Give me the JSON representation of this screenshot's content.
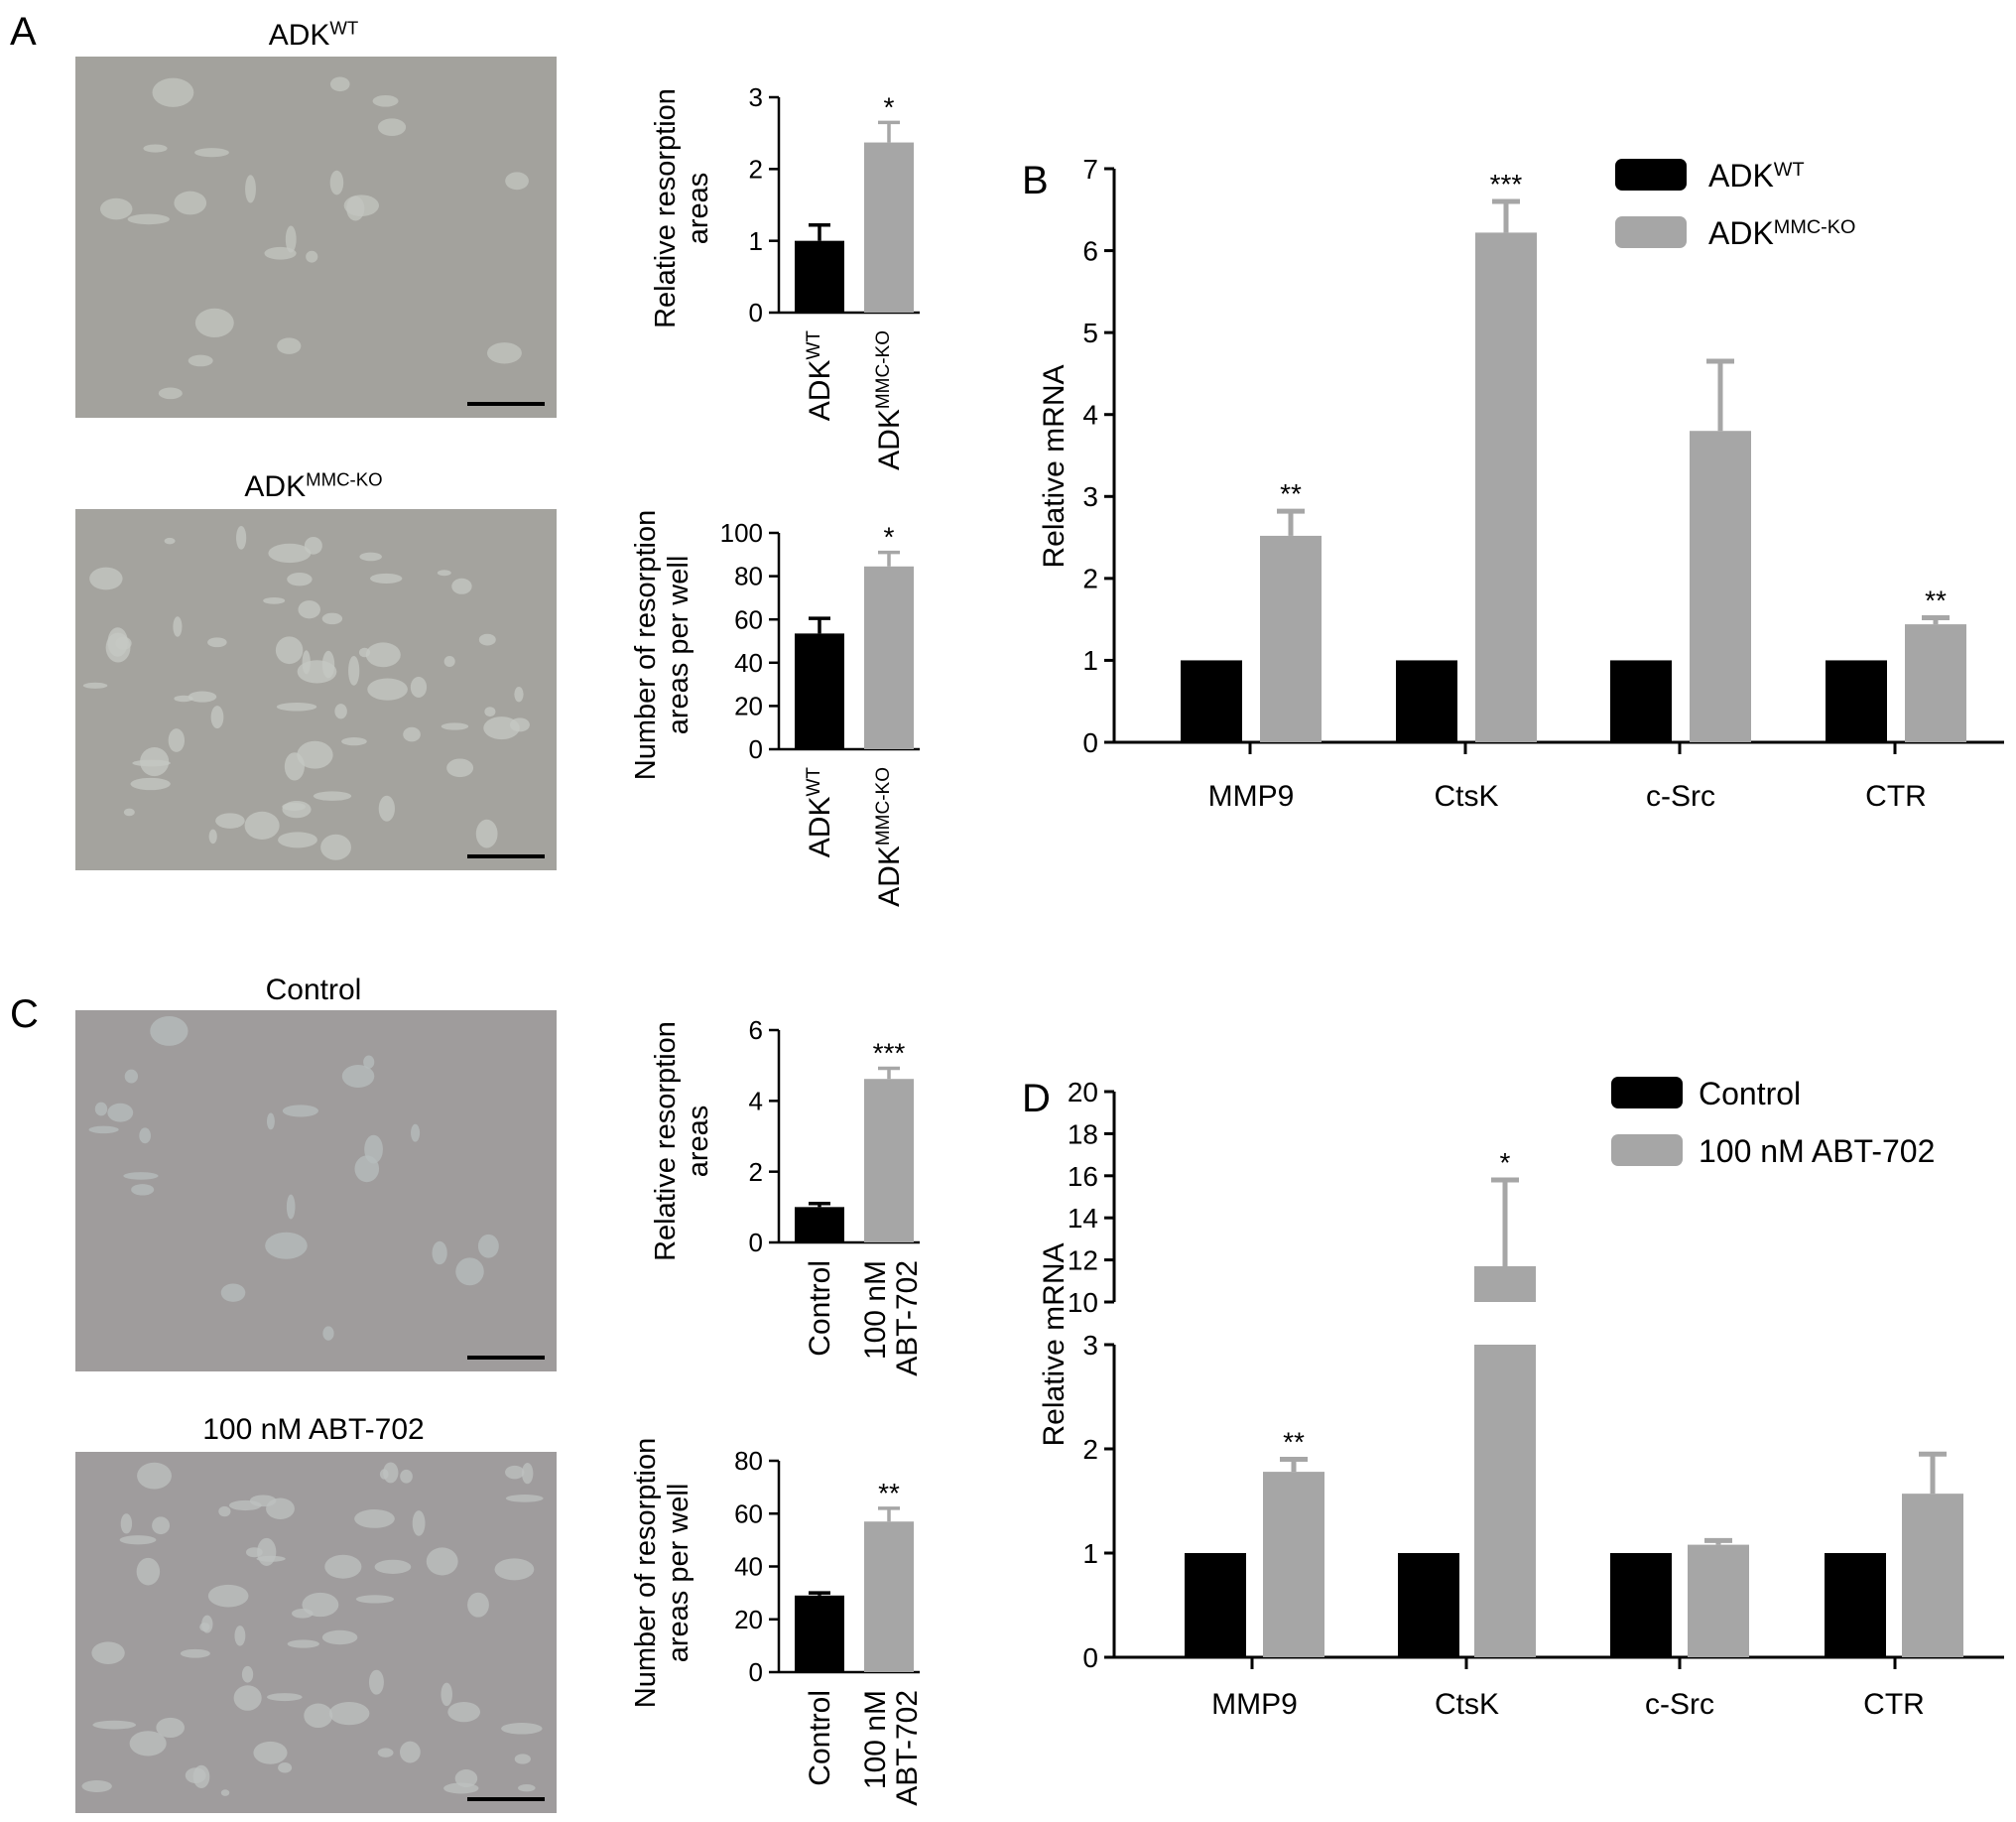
{
  "panel_letters": {
    "A": "A",
    "B": "B",
    "C": "C",
    "D": "D"
  },
  "micrographs": [
    {
      "id": "adk-wt",
      "label_main": "ADK",
      "label_sup": "WT",
      "tone": "#a3a29d",
      "specks": "#c3c5c0"
    },
    {
      "id": "adk-mmc-ko",
      "label_main": "ADK",
      "label_sup": "MMC-KO",
      "tone": "#a4a39e",
      "specks": "#c6c8c3"
    },
    {
      "id": "control",
      "label_main": "Control",
      "label_sup": "",
      "tone": "#9f9c9c",
      "specks": "#b7bdbd"
    },
    {
      "id": "abt-702",
      "label_main": "100 nM ABT-702",
      "label_sup": "",
      "tone": "#9f9c9d",
      "specks": "#bec1c0"
    }
  ],
  "colors": {
    "group1": "#000000",
    "group2": "#a6a6a6"
  },
  "chart_data": [
    {
      "id": "A-top",
      "panel": "A",
      "type": "bar",
      "categories": [
        {
          "main": "ADK",
          "sup": "WT"
        },
        {
          "main": "ADK",
          "sup": "MMC-KO"
        }
      ],
      "values": [
        1.0,
        2.37
      ],
      "errors": [
        0.22,
        0.28
      ],
      "significance": [
        "",
        "*"
      ],
      "ylabel": [
        "Relative resorption",
        "areas"
      ],
      "ylim": [
        0,
        3
      ],
      "yticks": [
        0,
        1,
        2,
        3
      ]
    },
    {
      "id": "A-bottom",
      "panel": "A",
      "type": "bar",
      "categories": [
        {
          "main": "ADK",
          "sup": "WT"
        },
        {
          "main": "ADK",
          "sup": "MMC-KO"
        }
      ],
      "values": [
        53.5,
        84.5
      ],
      "errors": [
        7,
        6.5
      ],
      "significance": [
        "",
        "*"
      ],
      "ylabel": [
        "Number of resorption",
        "areas per well"
      ],
      "ylim": [
        0,
        100
      ],
      "yticks": [
        0,
        20,
        40,
        60,
        80,
        100
      ]
    },
    {
      "id": "C-top",
      "panel": "C",
      "type": "bar",
      "categories": [
        {
          "line1": "Control"
        },
        {
          "line1": "100 nM",
          "line2": "ABT-702"
        }
      ],
      "values": [
        1.0,
        4.62
      ],
      "errors": [
        0.1,
        0.3
      ],
      "significance": [
        "",
        "***"
      ],
      "ylabel": [
        "Relative resorption",
        "areas"
      ],
      "ylim": [
        0,
        6
      ],
      "yticks": [
        0,
        2,
        4,
        6
      ]
    },
    {
      "id": "C-bottom",
      "panel": "C",
      "type": "bar",
      "categories": [
        {
          "line1": "Control"
        },
        {
          "line1": "100 nM",
          "line2": "ABT-702"
        }
      ],
      "values": [
        29,
        57
      ],
      "errors": [
        1,
        5
      ],
      "significance": [
        "",
        "**"
      ],
      "ylabel": [
        "Number of resorption",
        "areas per well"
      ],
      "ylim": [
        0,
        80
      ],
      "yticks": [
        0,
        20,
        40,
        60,
        80
      ]
    },
    {
      "id": "B",
      "panel": "B",
      "type": "bar",
      "categories": [
        "MMP9",
        "CtsK",
        "c-Src",
        "CTR"
      ],
      "series": [
        {
          "name": {
            "main": "ADK",
            "sup": "WT"
          },
          "values": [
            1,
            1,
            1,
            1
          ],
          "errors": [
            0,
            0,
            0,
            0
          ],
          "significance": [
            "",
            "",
            "",
            ""
          ]
        },
        {
          "name": {
            "main": "ADK",
            "sup": "MMC-KO"
          },
          "values": [
            2.52,
            6.22,
            3.8,
            1.44
          ],
          "errors": [
            0.3,
            0.38,
            0.85,
            0.08
          ],
          "significance": [
            "**",
            "***",
            "",
            "**"
          ]
        }
      ],
      "ylabel": "Relative mRNA",
      "ylim": [
        0,
        7
      ],
      "yticks": [
        0,
        1,
        2,
        3,
        4,
        5,
        6,
        7
      ],
      "legend": "top-right"
    },
    {
      "id": "D",
      "panel": "D",
      "type": "bar",
      "categories": [
        "MMP9",
        "CtsK",
        "c-Src",
        "CTR"
      ],
      "series": [
        {
          "name": "Control",
          "values": [
            1,
            1,
            1,
            1
          ],
          "errors": [
            0,
            0,
            0,
            0
          ],
          "significance": [
            "",
            "",
            "",
            ""
          ]
        },
        {
          "name": "100 nM ABT-702",
          "values": [
            1.78,
            11.7,
            1.08,
            1.57
          ],
          "errors": [
            0.12,
            4.1,
            0.04,
            0.38
          ],
          "significance": [
            "**",
            "*",
            "",
            ""
          ]
        }
      ],
      "ylabel": "Relative mRNA",
      "axis_break": [
        3,
        10
      ],
      "ylim_lower": [
        0,
        3
      ],
      "yticks_lower": [
        0,
        1,
        2,
        3
      ],
      "ylim_upper": [
        10,
        20
      ],
      "yticks_upper": [
        10,
        12,
        14,
        16,
        18,
        20
      ],
      "legend": "top-right"
    }
  ]
}
